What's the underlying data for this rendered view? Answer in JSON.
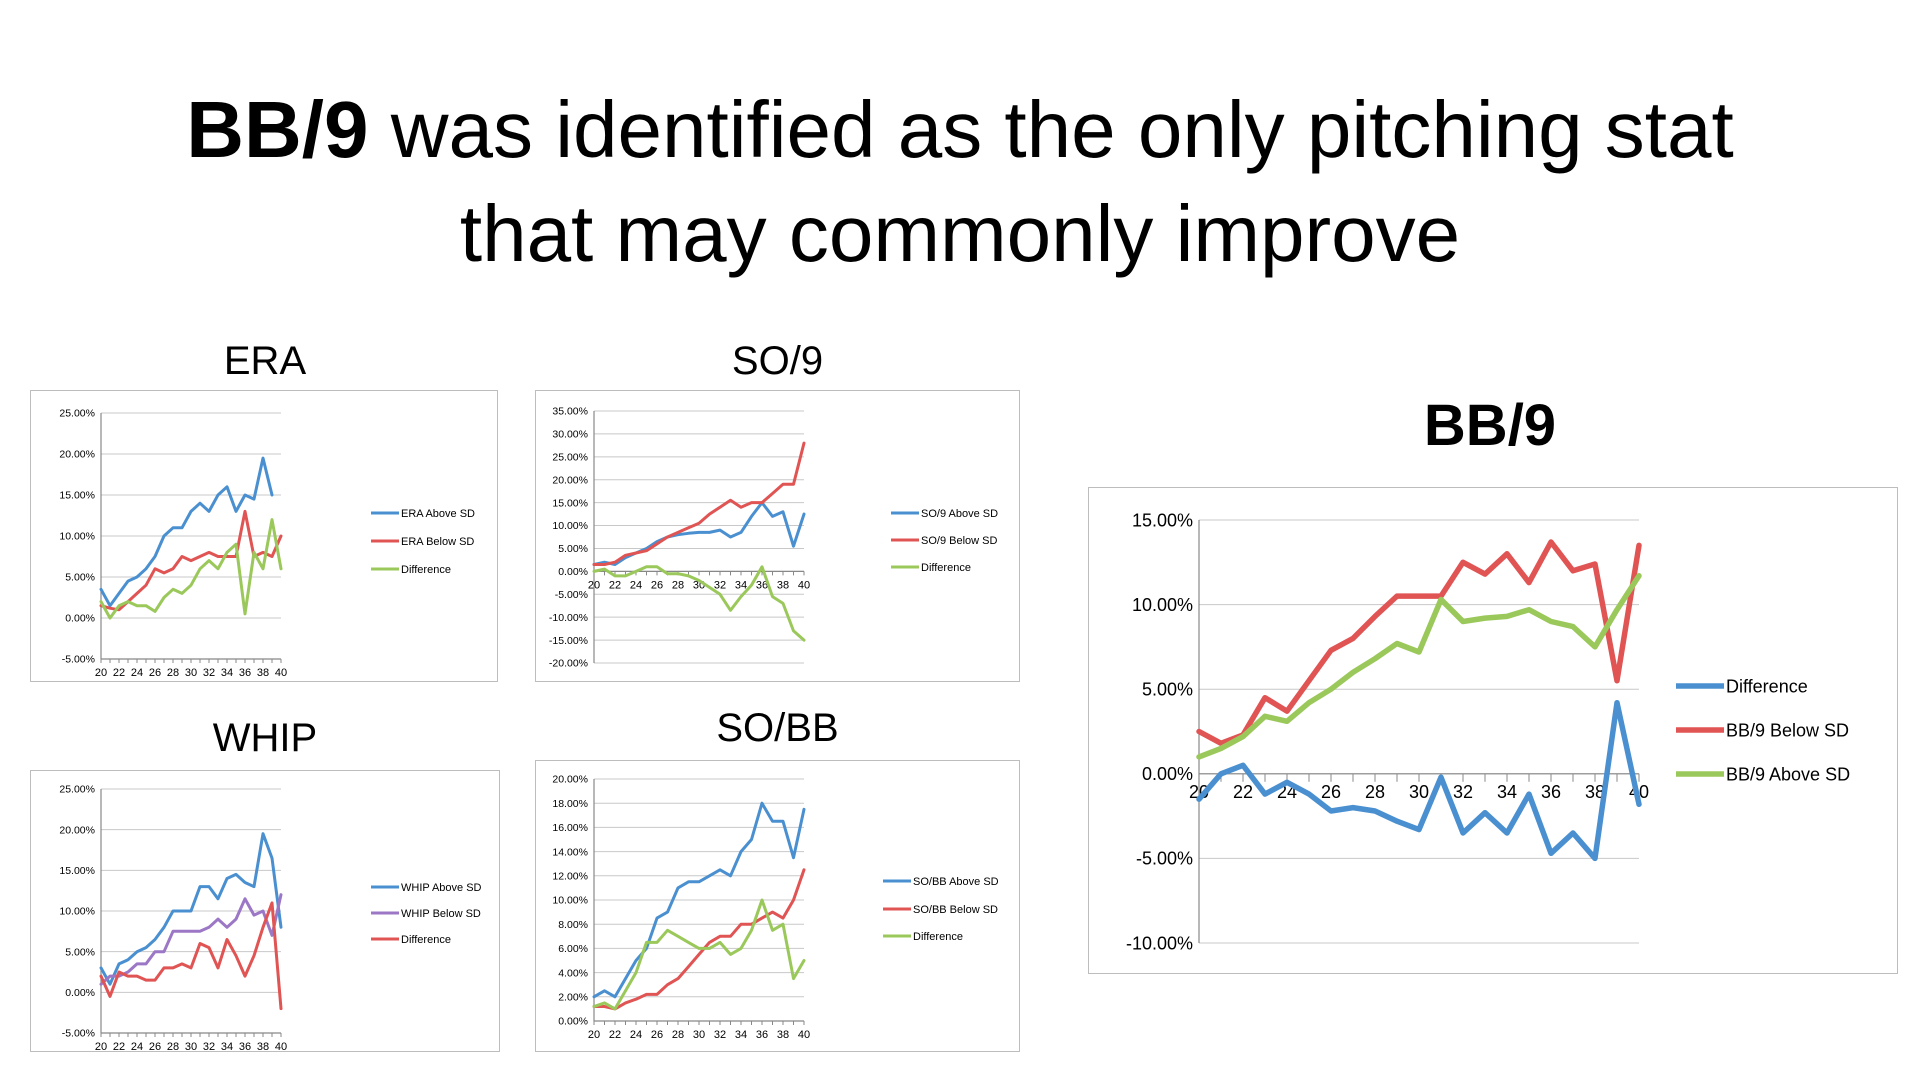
{
  "slide": {
    "title_bold": "BB/9",
    "title_rest_line1": " was identified as the only pitching stat",
    "title_line2": "that may commonly improve"
  },
  "colors": {
    "blue": "#4a90d0",
    "red": "#e05454",
    "green": "#9bc85a",
    "purple": "#9b77c6"
  },
  "chart_data": [
    {
      "id": "era",
      "type": "line",
      "title": "ERA",
      "x": [
        20,
        21,
        22,
        23,
        24,
        25,
        26,
        27,
        28,
        29,
        30,
        31,
        32,
        33,
        34,
        35,
        36,
        37,
        38,
        39,
        40
      ],
      "x_ticks": [
        "20",
        "22",
        "24",
        "26",
        "28",
        "30",
        "32",
        "34",
        "36",
        "38",
        "40"
      ],
      "y_ticks": [
        "25.00%",
        "20.00%",
        "15.00%",
        "10.00%",
        "5.00%",
        "0.00%",
        "-5.00%"
      ],
      "ylim": [
        -5,
        25
      ],
      "series": [
        {
          "name": "ERA Above SD",
          "color": "blue",
          "values": [
            3.5,
            1.5,
            3,
            4.5,
            5,
            6,
            7.5,
            10,
            11,
            11,
            13,
            14,
            13,
            15,
            16,
            13,
            15,
            14.5,
            19.5,
            15,
            null
          ]
        },
        {
          "name": "ERA Below SD",
          "color": "red",
          "values": [
            1.5,
            1.2,
            1,
            2,
            3,
            4,
            6,
            5.5,
            6,
            7.5,
            7,
            7.5,
            8,
            7.5,
            7.5,
            7.5,
            13,
            7.5,
            8,
            7.5,
            10
          ]
        },
        {
          "name": "Difference",
          "color": "green",
          "values": [
            2,
            0,
            1.5,
            2,
            1.5,
            1.5,
            0.8,
            2.5,
            3.5,
            3,
            4,
            6,
            7,
            6,
            8,
            9,
            0.5,
            8,
            6,
            12,
            6
          ]
        }
      ]
    },
    {
      "id": "so9",
      "type": "line",
      "title": "SO/9",
      "x": [
        20,
        21,
        22,
        23,
        24,
        25,
        26,
        27,
        28,
        29,
        30,
        31,
        32,
        33,
        34,
        35,
        36,
        37,
        38,
        39,
        40
      ],
      "x_ticks": [
        "20",
        "22",
        "24",
        "26",
        "28",
        "30",
        "32",
        "34",
        "36",
        "38",
        "40"
      ],
      "y_ticks": [
        "35.00%",
        "30.00%",
        "25.00%",
        "20.00%",
        "15.00%",
        "10.00%",
        "5.00%",
        "0.00%",
        "-5.00%",
        "-10.00%",
        "-15.00%",
        "-20.00%"
      ],
      "ylim": [
        -20,
        35
      ],
      "series": [
        {
          "name": "SO/9 Above SD",
          "color": "blue",
          "values": [
            1.5,
            2,
            1.5,
            3,
            4,
            5,
            6.5,
            7.5,
            8,
            8.3,
            8.5,
            8.5,
            9,
            7.5,
            8.5,
            12,
            15,
            12,
            13,
            5.5,
            12.5
          ]
        },
        {
          "name": "SO/9 Below SD",
          "color": "red",
          "values": [
            1.5,
            1.5,
            2,
            3.5,
            4,
            4.5,
            6,
            7.5,
            8.5,
            9.5,
            10.5,
            12.5,
            14,
            15.5,
            14,
            15,
            15,
            17,
            19,
            19,
            28
          ]
        },
        {
          "name": "Difference",
          "color": "green",
          "values": [
            0,
            0.5,
            -1,
            -1,
            0,
            1,
            1,
            -0.5,
            -0.5,
            -1,
            -2,
            -3.5,
            -5,
            -8.5,
            -5.5,
            -3,
            1,
            -5.5,
            -7,
            -13,
            -15
          ]
        }
      ]
    },
    {
      "id": "whip",
      "type": "line",
      "title": "WHIP",
      "x": [
        20,
        21,
        22,
        23,
        24,
        25,
        26,
        27,
        28,
        29,
        30,
        31,
        32,
        33,
        34,
        35,
        36,
        37,
        38,
        39,
        40
      ],
      "x_ticks": [
        "20",
        "22",
        "24",
        "26",
        "28",
        "30",
        "32",
        "34",
        "36",
        "38",
        "40"
      ],
      "y_ticks": [
        "25.00%",
        "20.00%",
        "15.00%",
        "10.00%",
        "5.00%",
        "0.00%",
        "-5.00%"
      ],
      "ylim": [
        -5,
        25
      ],
      "series": [
        {
          "name": "WHIP Above SD",
          "color": "blue",
          "values": [
            3,
            1,
            3.5,
            4,
            5,
            5.5,
            6.5,
            8,
            10,
            10,
            10,
            13,
            13,
            11.5,
            14,
            14.5,
            13.5,
            13,
            19.5,
            16.5,
            8
          ]
        },
        {
          "name": "WHIP Below SD",
          "color": "purple",
          "values": [
            1,
            2,
            2,
            2.5,
            3.5,
            3.5,
            5,
            5,
            7.5,
            7.5,
            7.5,
            7.5,
            8,
            9,
            8,
            9,
            11.5,
            9.5,
            10,
            7,
            12
          ]
        },
        {
          "name": "Difference",
          "color": "red",
          "values": [
            2,
            -0.5,
            2.5,
            2,
            2,
            1.5,
            1.5,
            3,
            3,
            3.5,
            3,
            6,
            5.5,
            3,
            6.5,
            4.5,
            2,
            4.5,
            8,
            11,
            -2
          ]
        }
      ]
    },
    {
      "id": "sobb",
      "type": "line",
      "title": "SO/BB",
      "x": [
        20,
        21,
        22,
        23,
        24,
        25,
        26,
        27,
        28,
        29,
        30,
        31,
        32,
        33,
        34,
        35,
        36,
        37,
        38,
        39,
        40
      ],
      "x_ticks": [
        "20",
        "22",
        "24",
        "26",
        "28",
        "30",
        "32",
        "34",
        "36",
        "38",
        "40"
      ],
      "y_ticks": [
        "20.00%",
        "18.00%",
        "16.00%",
        "14.00%",
        "12.00%",
        "10.00%",
        "8.00%",
        "6.00%",
        "4.00%",
        "2.00%",
        "0.00%"
      ],
      "ylim": [
        0,
        20
      ],
      "series": [
        {
          "name": "SO/BB Above SD",
          "color": "blue",
          "values": [
            2,
            2.5,
            2,
            3.5,
            5,
            6,
            8.5,
            9,
            11,
            11.5,
            11.5,
            12,
            12.5,
            12,
            14,
            15,
            18,
            16.5,
            16.5,
            13.5,
            17.5
          ]
        },
        {
          "name": "SO/BB Below SD",
          "color": "red",
          "values": [
            1.2,
            1.2,
            1,
            1.5,
            1.8,
            2.2,
            2.2,
            3,
            3.5,
            4.5,
            5.5,
            6.5,
            7,
            7,
            8,
            8,
            8.5,
            9,
            8.5,
            10,
            12.5
          ]
        },
        {
          "name": "Difference",
          "color": "green",
          "values": [
            1.2,
            1.5,
            1,
            2.5,
            4,
            6.5,
            6.5,
            7.5,
            7,
            6.5,
            6,
            6,
            6.5,
            5.5,
            6,
            7.5,
            10,
            7.5,
            8,
            3.5,
            5
          ]
        }
      ]
    },
    {
      "id": "bb9",
      "type": "line",
      "title": "BB/9",
      "x": [
        20,
        21,
        22,
        23,
        24,
        25,
        26,
        27,
        28,
        29,
        30,
        31,
        32,
        33,
        34,
        35,
        36,
        37,
        38,
        39,
        40
      ],
      "x_ticks": [
        "20",
        "22",
        "24",
        "26",
        "28",
        "30",
        "32",
        "34",
        "36",
        "38",
        "40"
      ],
      "y_ticks": [
        "15.00%",
        "10.00%",
        "5.00%",
        "0.00%",
        "-5.00%",
        "-10.00%"
      ],
      "ylim": [
        -10,
        15
      ],
      "series": [
        {
          "name": "Difference",
          "color": "blue",
          "values": [
            -1.5,
            0,
            0.5,
            -1.2,
            -0.5,
            -1.2,
            -2.2,
            -2,
            -2.2,
            -2.8,
            -3.3,
            -0.2,
            -3.5,
            -2.3,
            -3.5,
            -1.2,
            -4.7,
            -3.5,
            -5,
            4.2,
            -1.8
          ]
        },
        {
          "name": "BB/9 Below SD",
          "color": "red",
          "values": [
            2.5,
            1.8,
            2.3,
            4.5,
            3.7,
            5.5,
            7.3,
            8,
            9.3,
            10.5,
            10.5,
            10.5,
            12.5,
            11.8,
            13,
            11.3,
            13.7,
            12,
            12.4,
            5.5,
            13.5
          ]
        },
        {
          "name": "BB/9 Above SD",
          "color": "green",
          "values": [
            1,
            1.5,
            2.2,
            3.4,
            3.1,
            4.2,
            5,
            6,
            6.8,
            7.7,
            7.2,
            10.3,
            9,
            9.2,
            9.3,
            9.7,
            9,
            8.7,
            7.5,
            9.7,
            11.7
          ]
        }
      ]
    }
  ]
}
